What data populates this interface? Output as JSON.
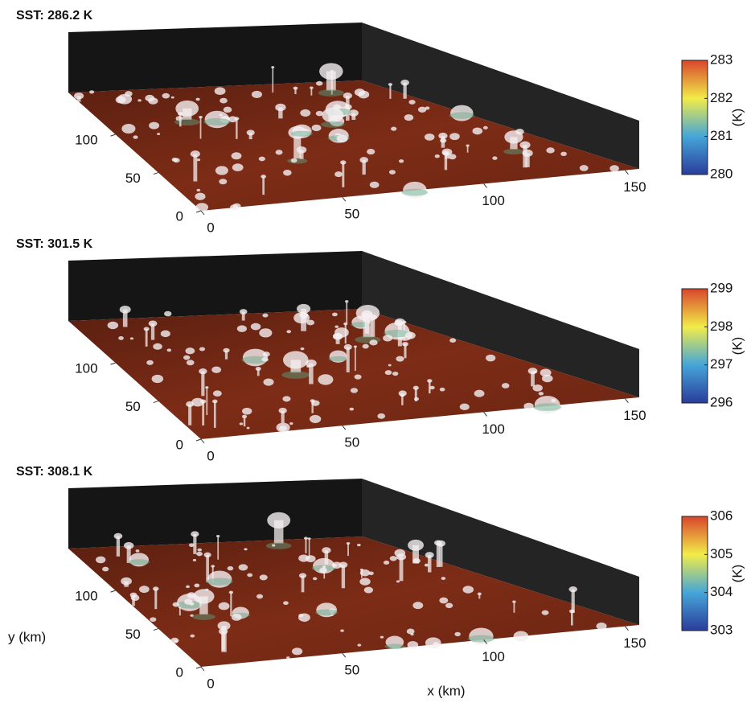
{
  "chart_data": [
    {
      "type": "surface3d",
      "title": "SST: 286.2 K",
      "xlim": [
        0,
        155
      ],
      "xticks": [
        0,
        50,
        100,
        150
      ],
      "ylim": [
        0,
        155
      ],
      "yticks": [
        0,
        50,
        100
      ],
      "colorbar": {
        "label": "(K)",
        "lim": [
          280,
          283
        ],
        "ticks": [
          280,
          281,
          282,
          283
        ],
        "colors": [
          "#2a3c9c",
          "#45a6d8",
          "#f2ec48",
          "#d8452c"
        ]
      }
    },
    {
      "type": "surface3d",
      "title": "SST: 301.5 K",
      "xlim": [
        0,
        155
      ],
      "xticks": [
        0,
        50,
        100,
        150
      ],
      "ylim": [
        0,
        155
      ],
      "yticks": [
        0,
        50,
        100
      ],
      "colorbar": {
        "label": "(K)",
        "lim": [
          296,
          299
        ],
        "ticks": [
          296,
          297,
          298,
          299
        ],
        "colors": [
          "#2a3c9c",
          "#45a6d8",
          "#f2ec48",
          "#d8452c"
        ]
      }
    },
    {
      "type": "surface3d",
      "title": "SST: 308.1 K",
      "xlabel": "x (km)",
      "ylabel": "y (km)",
      "xlim": [
        0,
        155
      ],
      "xticks": [
        0,
        50,
        100,
        150
      ],
      "ylim": [
        0,
        155
      ],
      "yticks": [
        0,
        50,
        100
      ],
      "colorbar": {
        "label": "(K)",
        "lim": [
          303,
          306
        ],
        "ticks": [
          303,
          304,
          305,
          306
        ],
        "colors": [
          "#2a3c9c",
          "#45a6d8",
          "#f2ec48",
          "#d8452c"
        ]
      }
    }
  ]
}
